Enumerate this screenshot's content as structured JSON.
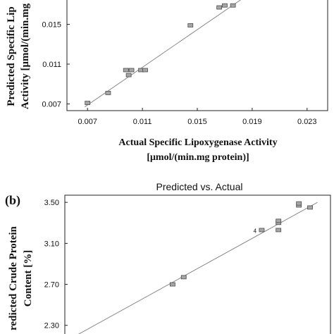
{
  "chart_data": [
    {
      "type": "scatter",
      "title": "",
      "xlabel": "Actual Specific Lipoxygenase Activity",
      "xlabel_line2": "[μmol/(min.mg protein)]",
      "ylabel_line1": "Predicted Specific Lip",
      "ylabel_line2": "Activity [μmol/(min.mg",
      "xticks": [
        "0.007",
        "0.011",
        "0.015",
        "0.019",
        "0.023"
      ],
      "yticks": [
        "0.007",
        "0.011",
        "0.015"
      ],
      "xlim": [
        0.0055,
        0.0245
      ],
      "ylim": [
        0.0042,
        0.0178
      ],
      "grid": false,
      "fit_line": {
        "x": [
          0.0068,
          0.0182
        ],
        "y": [
          0.0067,
          0.0175
        ]
      },
      "points": [
        {
          "x": 0.007,
          "y": 0.0071
        },
        {
          "x": 0.0085,
          "y": 0.0081
        },
        {
          "x": 0.0098,
          "y": 0.0104
        },
        {
          "x": 0.01,
          "y": 0.0099
        },
        {
          "x": 0.0102,
          "y": 0.0104
        },
        {
          "x": 0.0109,
          "y": 0.0104
        },
        {
          "x": 0.0112,
          "y": 0.0104
        },
        {
          "x": 0.0145,
          "y": 0.0149
        },
        {
          "x": 0.0166,
          "y": 0.0167
        },
        {
          "x": 0.017,
          "y": 0.0169
        },
        {
          "x": 0.0176,
          "y": 0.0169
        }
      ]
    },
    {
      "type": "scatter",
      "panel_label": "(b)",
      "title": "Predicted vs. Actual",
      "ylabel_line1": "redicted Crude Protein",
      "ylabel_line2": "Content [%]",
      "yticks": [
        "3.50",
        "3.10",
        "2.70",
        "2.30"
      ],
      "ylim": [
        2.14,
        3.57
      ],
      "xlim": [
        2.14,
        3.57
      ],
      "grid": false,
      "fit_line": {
        "x": [
          2.15,
          3.5
        ],
        "y": [
          2.15,
          3.5
        ]
      },
      "annotation": {
        "text": "4",
        "x": 3.193,
        "y": 3.228
      },
      "points": [
        {
          "x": 2.72,
          "y": 2.7
        },
        {
          "x": 2.78,
          "y": 2.77
        },
        {
          "x": 3.2,
          "y": 3.23
        },
        {
          "x": 3.29,
          "y": 3.23
        },
        {
          "x": 3.29,
          "y": 3.3
        },
        {
          "x": 3.29,
          "y": 3.32
        },
        {
          "x": 3.4,
          "y": 3.47
        },
        {
          "x": 3.4,
          "y": 3.49
        },
        {
          "x": 3.46,
          "y": 3.45
        }
      ]
    }
  ],
  "colors": {
    "marker_fill": "#a6a6a6",
    "marker_stroke": "#4d4d4d",
    "line": "#888888",
    "axis": "#222222",
    "background": "#ffffff"
  }
}
